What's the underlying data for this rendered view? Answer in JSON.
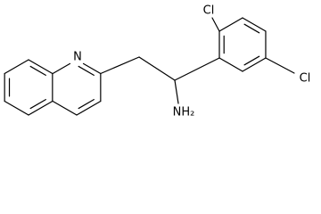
{
  "atoms": {
    "quinoline_n": "N",
    "chloro_2": "Cl",
    "chloro_5": "Cl",
    "amine": "NH₂"
  }
}
